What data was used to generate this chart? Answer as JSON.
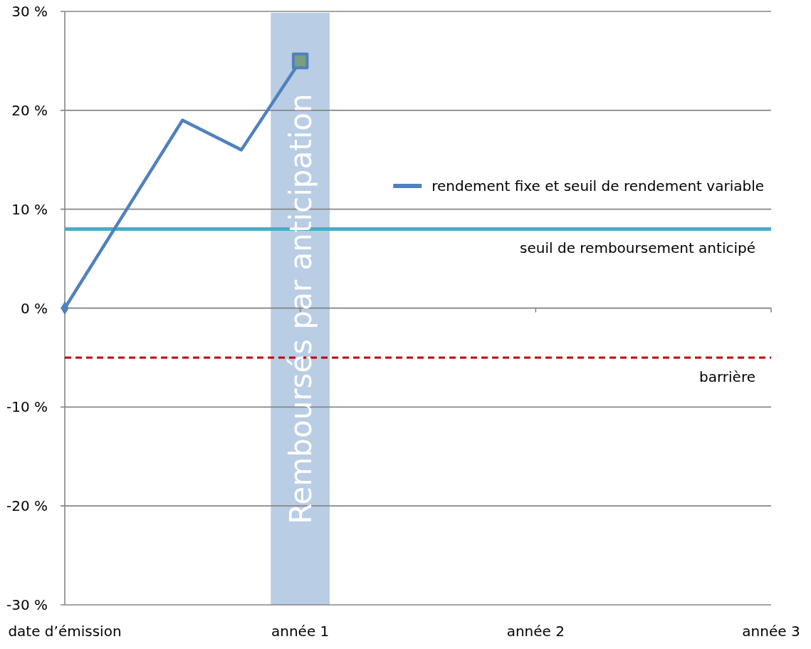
{
  "chart_data": {
    "type": "line",
    "categories": [
      "date d’émission",
      null,
      null,
      null,
      "année 1",
      null,
      null,
      null,
      "année 2",
      null,
      null,
      null,
      "année 3"
    ],
    "ylim": [
      -30,
      30
    ],
    "yticks": [
      {
        "value": 30,
        "label": "30 %"
      },
      {
        "value": 20,
        "label": "20 %"
      },
      {
        "value": 10,
        "label": "10 %"
      },
      {
        "value": 0,
        "label": "0 %"
      },
      {
        "value": -10,
        "label": "-10 %"
      },
      {
        "value": -20,
        "label": "-20 %"
      },
      {
        "value": -30,
        "label": "-30 %"
      }
    ],
    "grid": "y",
    "legend": "top right",
    "series": [
      {
        "name": "rendement fixe et seuil de rendement variable",
        "color": "#4f81bd",
        "values": [
          0,
          9.5,
          19,
          16,
          25,
          null,
          null,
          null,
          null,
          null,
          null,
          null,
          null
        ]
      },
      {
        "type": "scatter",
        "color": "#4f81bd",
        "x": [
          "date d’émission"
        ],
        "values": [
          0
        ],
        "marker": "diamond"
      },
      {
        "type": "scatter",
        "color": "#7a9e7e",
        "x": [
          "année 1"
        ],
        "values": [
          25
        ],
        "marker": "square"
      }
    ],
    "ref_lines": [
      {
        "axis": "y",
        "value": 8,
        "label": "seuil de remboursement anticipé",
        "color": "#4bacc6",
        "line_style": "solid"
      },
      {
        "axis": "y",
        "value": -5,
        "label": "barrière",
        "color": "#c00000",
        "line_style": "dashed"
      }
    ],
    "bands": [
      {
        "axis": "x",
        "from": "année 1",
        "to": "année 1",
        "label": "Remboursés par anticipation",
        "color": "#b9cde5"
      }
    ]
  }
}
